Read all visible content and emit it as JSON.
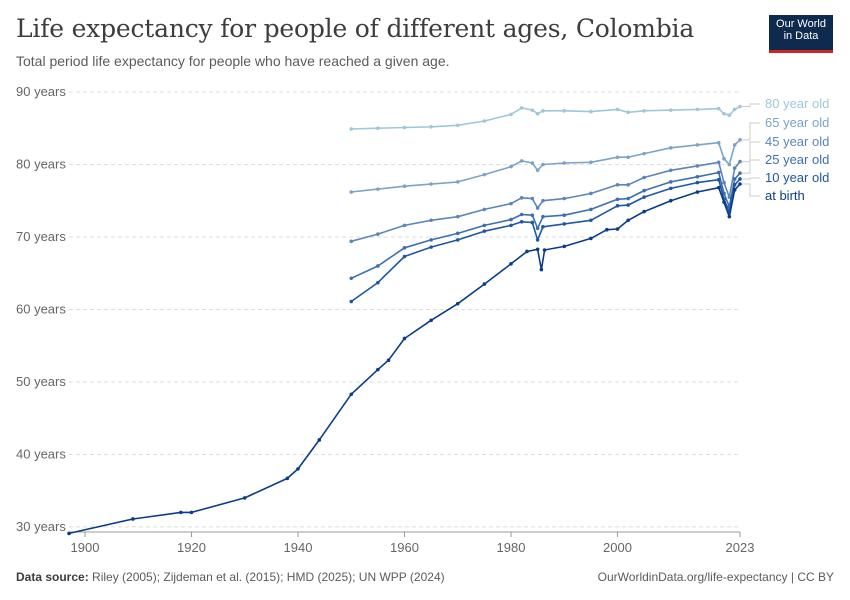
{
  "header": {
    "title": "Life expectancy for people of different ages, Colombia",
    "subtitle": "Total period life expectancy for people who have reached a given age."
  },
  "logo": {
    "line1": "Our World",
    "line2": "in Data"
  },
  "footer": {
    "source_label": "Data source:",
    "source_text": " Riley (2005); Zijdeman et al. (2015); HMD (2025); UN WPP (2024)",
    "credit": "OurWorldinData.org/life-expectancy | CC BY"
  },
  "colors": {
    "at_birth": "#0b3c88",
    "ten": "#1f57a4",
    "twentyfive": "#3d6fb0",
    "fortyfive": "#5b86bb",
    "sixtyfive": "#7ba3c8",
    "eighty": "#9ec7d9",
    "grid": "#dddddd",
    "axis_text": "#666666"
  },
  "chart_data": {
    "type": "line",
    "title": "Life expectancy for people of different ages, Colombia",
    "xlim": [
      1897,
      2023
    ],
    "ylim": [
      29.3,
      90
    ],
    "y_ticks": [
      30,
      40,
      50,
      60,
      70,
      80,
      90
    ],
    "y_tick_labels": [
      "30 years",
      "40 years",
      "50 years",
      "60 years",
      "70 years",
      "80 years",
      "90 years"
    ],
    "x_ticks": [
      1900,
      1920,
      1940,
      1960,
      1980,
      2000,
      2023
    ],
    "x_tick_labels": [
      "1900",
      "1920",
      "1940",
      "1960",
      "1980",
      "2000",
      "2023"
    ],
    "grid": "horizontal dashed",
    "legend": "right, line end labels",
    "series": [
      {
        "name": "80 year old",
        "color_key": "eighty",
        "points": [
          [
            1950,
            84.9
          ],
          [
            1955,
            85.0
          ],
          [
            1960,
            85.1
          ],
          [
            1965,
            85.2
          ],
          [
            1970,
            85.4
          ],
          [
            1975,
            86.0
          ],
          [
            1980,
            86.9
          ],
          [
            1982,
            87.8
          ],
          [
            1984,
            87.5
          ],
          [
            1985,
            87.0
          ],
          [
            1986,
            87.4
          ],
          [
            1990,
            87.4
          ],
          [
            1995,
            87.3
          ],
          [
            2000,
            87.6
          ],
          [
            2002,
            87.2
          ],
          [
            2005,
            87.4
          ],
          [
            2010,
            87.5
          ],
          [
            2015,
            87.6
          ],
          [
            2019,
            87.7
          ],
          [
            2020,
            87.0
          ],
          [
            2021,
            86.8
          ],
          [
            2022,
            87.6
          ],
          [
            2023,
            88.0
          ]
        ]
      },
      {
        "name": "65 year old",
        "color_key": "sixtyfive",
        "points": [
          [
            1950,
            76.2
          ],
          [
            1955,
            76.6
          ],
          [
            1960,
            77.0
          ],
          [
            1965,
            77.3
          ],
          [
            1970,
            77.6
          ],
          [
            1975,
            78.6
          ],
          [
            1980,
            79.7
          ],
          [
            1982,
            80.5
          ],
          [
            1984,
            80.2
          ],
          [
            1985,
            79.2
          ],
          [
            1986,
            80.0
          ],
          [
            1990,
            80.2
          ],
          [
            1995,
            80.3
          ],
          [
            2000,
            81.0
          ],
          [
            2002,
            81.0
          ],
          [
            2005,
            81.5
          ],
          [
            2010,
            82.3
          ],
          [
            2015,
            82.7
          ],
          [
            2019,
            83.0
          ],
          [
            2020,
            80.8
          ],
          [
            2021,
            80.0
          ],
          [
            2022,
            82.7
          ],
          [
            2023,
            83.4
          ]
        ]
      },
      {
        "name": "45 year old",
        "color_key": "fortyfive",
        "points": [
          [
            1950,
            69.4
          ],
          [
            1955,
            70.4
          ],
          [
            1960,
            71.6
          ],
          [
            1965,
            72.3
          ],
          [
            1970,
            72.8
          ],
          [
            1975,
            73.8
          ],
          [
            1980,
            74.6
          ],
          [
            1982,
            75.4
          ],
          [
            1984,
            75.3
          ],
          [
            1985,
            74.0
          ],
          [
            1986,
            75.0
          ],
          [
            1990,
            75.3
          ],
          [
            1995,
            76.0
          ],
          [
            2000,
            77.2
          ],
          [
            2002,
            77.2
          ],
          [
            2005,
            78.2
          ],
          [
            2010,
            79.2
          ],
          [
            2015,
            79.8
          ],
          [
            2019,
            80.3
          ],
          [
            2020,
            77.5
          ],
          [
            2021,
            75.5
          ],
          [
            2022,
            79.5
          ],
          [
            2023,
            80.4
          ]
        ]
      },
      {
        "name": "25 year old",
        "color_key": "twentyfive",
        "points": [
          [
            1950,
            64.3
          ],
          [
            1955,
            66.0
          ],
          [
            1960,
            68.5
          ],
          [
            1965,
            69.6
          ],
          [
            1970,
            70.5
          ],
          [
            1975,
            71.6
          ],
          [
            1980,
            72.4
          ],
          [
            1982,
            73.1
          ],
          [
            1984,
            73.0
          ],
          [
            1985,
            71.2
          ],
          [
            1986,
            72.8
          ],
          [
            1990,
            73.0
          ],
          [
            1995,
            73.8
          ],
          [
            2000,
            75.2
          ],
          [
            2002,
            75.3
          ],
          [
            2005,
            76.4
          ],
          [
            2010,
            77.6
          ],
          [
            2015,
            78.3
          ],
          [
            2019,
            78.9
          ],
          [
            2020,
            76.0
          ],
          [
            2021,
            74.2
          ],
          [
            2022,
            78.0
          ],
          [
            2023,
            78.8
          ]
        ]
      },
      {
        "name": "10 year old",
        "color_key": "ten",
        "points": [
          [
            1950,
            61.1
          ],
          [
            1955,
            63.7
          ],
          [
            1960,
            67.3
          ],
          [
            1965,
            68.6
          ],
          [
            1970,
            69.6
          ],
          [
            1975,
            70.8
          ],
          [
            1980,
            71.6
          ],
          [
            1982,
            72.1
          ],
          [
            1984,
            72.0
          ],
          [
            1985,
            69.6
          ],
          [
            1986,
            71.4
          ],
          [
            1990,
            71.8
          ],
          [
            1995,
            72.3
          ],
          [
            2000,
            74.3
          ],
          [
            2002,
            74.4
          ],
          [
            2005,
            75.5
          ],
          [
            2010,
            76.7
          ],
          [
            2015,
            77.5
          ],
          [
            2019,
            77.9
          ],
          [
            2020,
            75.2
          ],
          [
            2021,
            73.5
          ],
          [
            2022,
            77.2
          ],
          [
            2023,
            78.0
          ]
        ]
      },
      {
        "name": "at birth",
        "color_key": "at_birth",
        "points": [
          [
            1897,
            29.1
          ],
          [
            1909,
            31.1
          ],
          [
            1918,
            32.0
          ],
          [
            1920,
            32.0
          ],
          [
            1930,
            34.0
          ],
          [
            1938,
            36.7
          ],
          [
            1940,
            38.0
          ],
          [
            1944,
            42.0
          ],
          [
            1950,
            48.3
          ],
          [
            1955,
            51.7
          ],
          [
            1957,
            53.0
          ],
          [
            1960,
            56.0
          ],
          [
            1965,
            58.5
          ],
          [
            1970,
            60.8
          ],
          [
            1975,
            63.5
          ],
          [
            1980,
            66.3
          ],
          [
            1983,
            68.0
          ],
          [
            1985,
            68.3
          ],
          [
            1985.7,
            65.5
          ],
          [
            1986.3,
            68.2
          ],
          [
            1990,
            68.7
          ],
          [
            1995,
            69.8
          ],
          [
            1998,
            71.0
          ],
          [
            2000,
            71.1
          ],
          [
            2002,
            72.3
          ],
          [
            2005,
            73.5
          ],
          [
            2010,
            75.0
          ],
          [
            2015,
            76.2
          ],
          [
            2019,
            76.8
          ],
          [
            2020,
            74.8
          ],
          [
            2021,
            72.8
          ],
          [
            2022,
            76.5
          ],
          [
            2023,
            77.3
          ]
        ]
      }
    ]
  }
}
